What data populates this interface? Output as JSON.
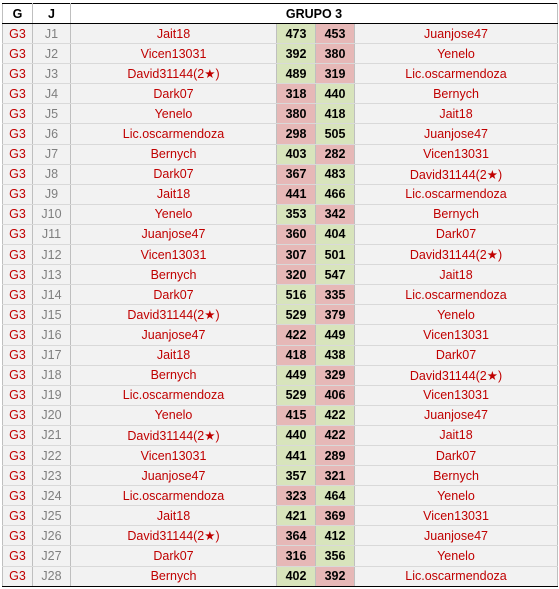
{
  "header": {
    "g": "G",
    "j": "J",
    "title": "GRUPO 3"
  },
  "colors": {
    "red_text": "#c00000",
    "win_fill": "#d8e4bc",
    "lose_fill": "#e6b8b7",
    "row_fill": "#f2f2f2"
  },
  "rows": [
    {
      "g": "G3",
      "j": "J1",
      "home": "Jait18",
      "hs": 473,
      "as": 453,
      "away": "Juanjose47"
    },
    {
      "g": "G3",
      "j": "J2",
      "home": "Vicen13031",
      "hs": 392,
      "as": 380,
      "away": "Yenelo"
    },
    {
      "g": "G3",
      "j": "J3",
      "home": "David31144(2★)",
      "hs": 489,
      "as": 319,
      "away": "Lic.oscarmendoza"
    },
    {
      "g": "G3",
      "j": "J4",
      "home": "Dark07",
      "hs": 318,
      "as": 440,
      "away": "Bernych"
    },
    {
      "g": "G3",
      "j": "J5",
      "home": "Yenelo",
      "hs": 380,
      "as": 418,
      "away": "Jait18"
    },
    {
      "g": "G3",
      "j": "J6",
      "home": "Lic.oscarmendoza",
      "hs": 298,
      "as": 505,
      "away": "Juanjose47"
    },
    {
      "g": "G3",
      "j": "J7",
      "home": "Bernych",
      "hs": 403,
      "as": 282,
      "away": "Vicen13031"
    },
    {
      "g": "G3",
      "j": "J8",
      "home": "Dark07",
      "hs": 367,
      "as": 483,
      "away": "David31144(2★)"
    },
    {
      "g": "G3",
      "j": "J9",
      "home": "Jait18",
      "hs": 441,
      "as": 466,
      "away": "Lic.oscarmendoza"
    },
    {
      "g": "G3",
      "j": "J10",
      "home": "Yenelo",
      "hs": 353,
      "as": 342,
      "away": "Bernych"
    },
    {
      "g": "G3",
      "j": "J11",
      "home": "Juanjose47",
      "hs": 360,
      "as": 404,
      "away": "Dark07"
    },
    {
      "g": "G3",
      "j": "J12",
      "home": "Vicen13031",
      "hs": 307,
      "as": 501,
      "away": "David31144(2★)"
    },
    {
      "g": "G3",
      "j": "J13",
      "home": "Bernych",
      "hs": 320,
      "as": 547,
      "away": "Jait18"
    },
    {
      "g": "G3",
      "j": "J14",
      "home": "Dark07",
      "hs": 516,
      "as": 335,
      "away": "Lic.oscarmendoza"
    },
    {
      "g": "G3",
      "j": "J15",
      "home": "David31144(2★)",
      "hs": 529,
      "as": 379,
      "away": "Yenelo"
    },
    {
      "g": "G3",
      "j": "J16",
      "home": "Juanjose47",
      "hs": 422,
      "as": 449,
      "away": "Vicen13031"
    },
    {
      "g": "G3",
      "j": "J17",
      "home": "Jait18",
      "hs": 418,
      "as": 438,
      "away": "Dark07"
    },
    {
      "g": "G3",
      "j": "J18",
      "home": "Bernych",
      "hs": 449,
      "as": 329,
      "away": "David31144(2★)"
    },
    {
      "g": "G3",
      "j": "J19",
      "home": "Lic.oscarmendoza",
      "hs": 529,
      "as": 406,
      "away": "Vicen13031"
    },
    {
      "g": "G3",
      "j": "J20",
      "home": "Yenelo",
      "hs": 415,
      "as": 422,
      "away": "Juanjose47"
    },
    {
      "g": "G3",
      "j": "J21",
      "home": "David31144(2★)",
      "hs": 440,
      "as": 422,
      "away": "Jait18"
    },
    {
      "g": "G3",
      "j": "J22",
      "home": "Vicen13031",
      "hs": 441,
      "as": 289,
      "away": "Dark07"
    },
    {
      "g": "G3",
      "j": "J23",
      "home": "Juanjose47",
      "hs": 357,
      "as": 321,
      "away": "Bernych"
    },
    {
      "g": "G3",
      "j": "J24",
      "home": "Lic.oscarmendoza",
      "hs": 323,
      "as": 464,
      "away": "Yenelo"
    },
    {
      "g": "G3",
      "j": "J25",
      "home": "Jait18",
      "hs": 421,
      "as": 369,
      "away": "Vicen13031"
    },
    {
      "g": "G3",
      "j": "J26",
      "home": "David31144(2★)",
      "hs": 364,
      "as": 412,
      "away": "Juanjose47"
    },
    {
      "g": "G3",
      "j": "J27",
      "home": "Dark07",
      "hs": 316,
      "as": 356,
      "away": "Yenelo"
    },
    {
      "g": "G3",
      "j": "J28",
      "home": "Bernych",
      "hs": 402,
      "as": 392,
      "away": "Lic.oscarmendoza"
    }
  ]
}
